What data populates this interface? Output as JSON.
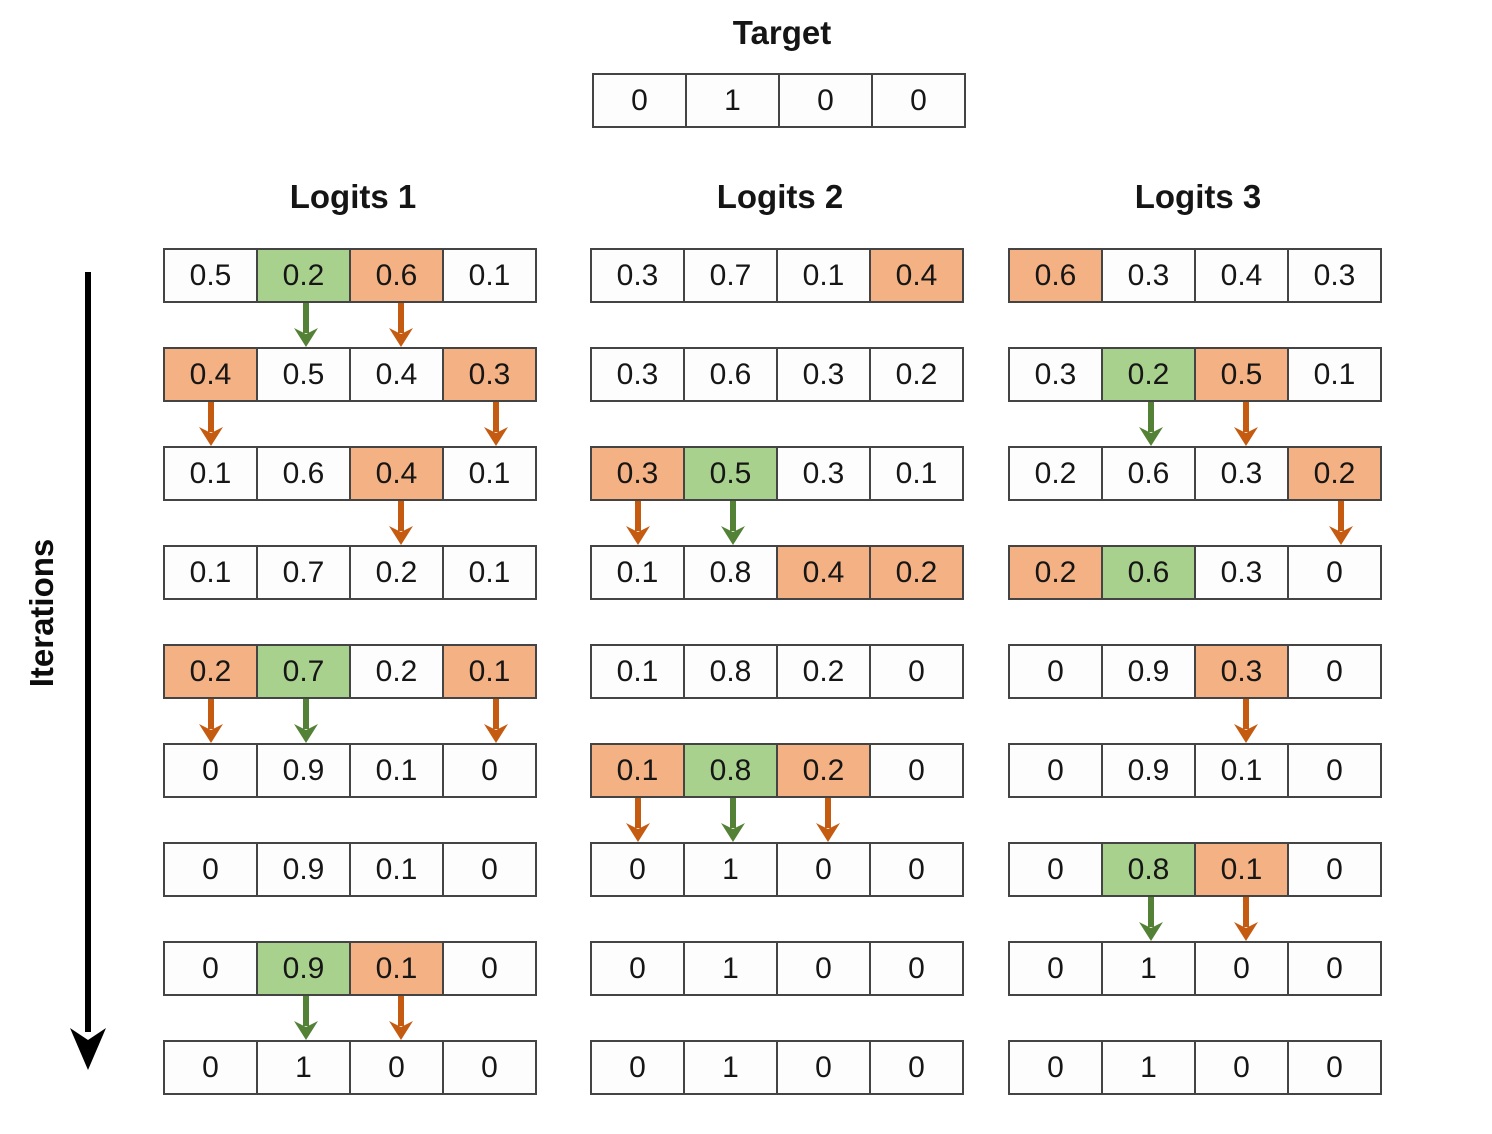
{
  "target": {
    "title": "Target",
    "values": [
      "0",
      "1",
      "0",
      "0"
    ]
  },
  "iterations": {
    "label": "Iterations"
  },
  "colors": {
    "green_fill": "#a9d18e",
    "orange_fill": "#f4b183",
    "green_arrow": "#538135",
    "orange_arrow": "#c55a11",
    "iterations_arrow": "#000000",
    "cell_border": "#444444",
    "text": "#161616"
  },
  "columns": [
    {
      "label": "Logits 1",
      "rows": [
        {
          "values": [
            "0.5",
            "0.2",
            "0.6",
            "0.1"
          ],
          "highlights": [
            "",
            "green",
            "orange",
            ""
          ],
          "arrows": [
            "",
            "green",
            "orange",
            ""
          ]
        },
        {
          "values": [
            "0.4",
            "0.5",
            "0.4",
            "0.3"
          ],
          "highlights": [
            "orange",
            "",
            "",
            "orange"
          ],
          "arrows": [
            "orange",
            "",
            "",
            "orange"
          ]
        },
        {
          "values": [
            "0.1",
            "0.6",
            "0.4",
            "0.1"
          ],
          "highlights": [
            "",
            "",
            "orange",
            ""
          ],
          "arrows": [
            "",
            "",
            "orange",
            ""
          ]
        },
        {
          "values": [
            "0.1",
            "0.7",
            "0.2",
            "0.1"
          ],
          "highlights": [
            "",
            "",
            "",
            ""
          ],
          "arrows": [
            "",
            "",
            "",
            ""
          ]
        },
        {
          "values": [
            "0.2",
            "0.7",
            "0.2",
            "0.1"
          ],
          "highlights": [
            "orange",
            "green",
            "",
            "orange"
          ],
          "arrows": [
            "orange",
            "green",
            "",
            "orange"
          ]
        },
        {
          "values": [
            "0",
            "0.9",
            "0.1",
            "0"
          ],
          "highlights": [
            "",
            "",
            "",
            ""
          ],
          "arrows": [
            "",
            "",
            "",
            ""
          ]
        },
        {
          "values": [
            "0",
            "0.9",
            "0.1",
            "0"
          ],
          "highlights": [
            "",
            "",
            "",
            ""
          ],
          "arrows": [
            "",
            "",
            "",
            ""
          ]
        },
        {
          "values": [
            "0",
            "0.9",
            "0.1",
            "0"
          ],
          "highlights": [
            "",
            "green",
            "orange",
            ""
          ],
          "arrows": [
            "",
            "green",
            "orange",
            ""
          ]
        },
        {
          "values": [
            "0",
            "1",
            "0",
            "0"
          ],
          "highlights": [
            "",
            "",
            "",
            ""
          ],
          "arrows": [
            "",
            "",
            "",
            ""
          ]
        }
      ]
    },
    {
      "label": "Logits 2",
      "rows": [
        {
          "values": [
            "0.3",
            "0.7",
            "0.1",
            "0.4"
          ],
          "highlights": [
            "",
            "",
            "",
            "orange"
          ],
          "arrows": [
            "",
            "",
            "",
            ""
          ]
        },
        {
          "values": [
            "0.3",
            "0.6",
            "0.3",
            "0.2"
          ],
          "highlights": [
            "",
            "",
            "",
            ""
          ],
          "arrows": [
            "",
            "",
            "",
            ""
          ]
        },
        {
          "values": [
            "0.3",
            "0.5",
            "0.3",
            "0.1"
          ],
          "highlights": [
            "orange",
            "green",
            "",
            ""
          ],
          "arrows": [
            "orange",
            "green",
            "",
            ""
          ]
        },
        {
          "values": [
            "0.1",
            "0.8",
            "0.4",
            "0.2"
          ],
          "highlights": [
            "",
            "",
            "orange",
            "orange"
          ],
          "arrows": [
            "",
            "",
            "",
            ""
          ]
        },
        {
          "values": [
            "0.1",
            "0.8",
            "0.2",
            "0"
          ],
          "highlights": [
            "",
            "",
            "",
            ""
          ],
          "arrows": [
            "",
            "",
            "",
            ""
          ]
        },
        {
          "values": [
            "0.1",
            "0.8",
            "0.2",
            "0"
          ],
          "highlights": [
            "orange",
            "green",
            "orange",
            ""
          ],
          "arrows": [
            "orange",
            "green",
            "orange",
            ""
          ]
        },
        {
          "values": [
            "0",
            "1",
            "0",
            "0"
          ],
          "highlights": [
            "",
            "",
            "",
            ""
          ],
          "arrows": [
            "",
            "",
            "",
            ""
          ]
        },
        {
          "values": [
            "0",
            "1",
            "0",
            "0"
          ],
          "highlights": [
            "",
            "",
            "",
            ""
          ],
          "arrows": [
            "",
            "",
            "",
            ""
          ]
        },
        {
          "values": [
            "0",
            "1",
            "0",
            "0"
          ],
          "highlights": [
            "",
            "",
            "",
            ""
          ],
          "arrows": [
            "",
            "",
            "",
            ""
          ]
        }
      ]
    },
    {
      "label": "Logits 3",
      "rows": [
        {
          "values": [
            "0.6",
            "0.3",
            "0.4",
            "0.3"
          ],
          "highlights": [
            "orange",
            "",
            "",
            ""
          ],
          "arrows": [
            "",
            "",
            "",
            ""
          ]
        },
        {
          "values": [
            "0.3",
            "0.2",
            "0.5",
            "0.1"
          ],
          "highlights": [
            "",
            "green",
            "orange",
            ""
          ],
          "arrows": [
            "",
            "green",
            "orange",
            ""
          ]
        },
        {
          "values": [
            "0.2",
            "0.6",
            "0.3",
            "0.2"
          ],
          "highlights": [
            "",
            "",
            "",
            "orange"
          ],
          "arrows": [
            "",
            "",
            "",
            "orange"
          ]
        },
        {
          "values": [
            "0.2",
            "0.6",
            "0.3",
            "0"
          ],
          "highlights": [
            "orange",
            "green",
            "",
            ""
          ],
          "arrows": [
            "",
            "",
            "",
            ""
          ]
        },
        {
          "values": [
            "0",
            "0.9",
            "0.3",
            "0"
          ],
          "highlights": [
            "",
            "",
            "orange",
            ""
          ],
          "arrows": [
            "",
            "",
            "orange",
            ""
          ]
        },
        {
          "values": [
            "0",
            "0.9",
            "0.1",
            "0"
          ],
          "highlights": [
            "",
            "",
            "",
            ""
          ],
          "arrows": [
            "",
            "",
            "",
            ""
          ]
        },
        {
          "values": [
            "0",
            "0.8",
            "0.1",
            "0"
          ],
          "highlights": [
            "",
            "green",
            "orange",
            ""
          ],
          "arrows": [
            "",
            "green",
            "orange",
            ""
          ]
        },
        {
          "values": [
            "0",
            "1",
            "0",
            "0"
          ],
          "highlights": [
            "",
            "",
            "",
            ""
          ],
          "arrows": [
            "",
            "",
            "",
            ""
          ]
        },
        {
          "values": [
            "0",
            "1",
            "0",
            "0"
          ],
          "highlights": [
            "",
            "",
            "",
            ""
          ],
          "arrows": [
            "",
            "",
            "",
            ""
          ]
        }
      ]
    }
  ]
}
